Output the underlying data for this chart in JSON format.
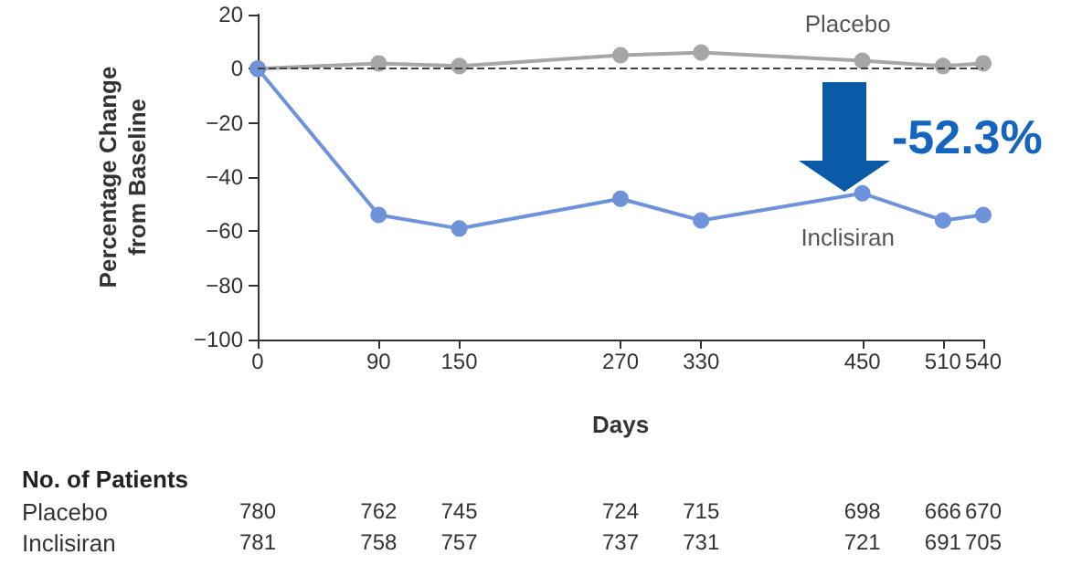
{
  "chart_data": {
    "type": "line",
    "xlabel": "Days",
    "ylabel": "Percentage Change\nfrom Baseline",
    "x": [
      0,
      90,
      150,
      270,
      330,
      450,
      510,
      540
    ],
    "xlim": [
      0,
      540
    ],
    "xticks": [
      0,
      90,
      150,
      270,
      330,
      450,
      510,
      540
    ],
    "ylim": [
      -100,
      20
    ],
    "yticks": [
      -100,
      -80,
      -60,
      -40,
      -20,
      0,
      20
    ],
    "series": [
      {
        "name": "Placebo",
        "color": "#a6a6a6",
        "values": [
          0,
          2,
          1,
          5,
          6,
          3,
          1,
          2
        ]
      },
      {
        "name": "Inclisiran",
        "color": "#6f93db",
        "values": [
          0,
          -54,
          -59,
          -48,
          -56,
          -46,
          -56,
          -54
        ]
      }
    ],
    "ref_lines": [
      {
        "axis": "y",
        "value": 0,
        "color": "#444444",
        "line_style": "dashed"
      }
    ],
    "annotations": [
      "-52.3%",
      "No. of Patients",
      "780",
      "762",
      "745",
      "724",
      "715",
      "698",
      "666",
      "670",
      "781",
      "758",
      "757",
      "737",
      "731",
      "721",
      "691",
      "705"
    ],
    "marker": "circle",
    "line_style": "solid",
    "grid": false,
    "legend": false
  }
}
